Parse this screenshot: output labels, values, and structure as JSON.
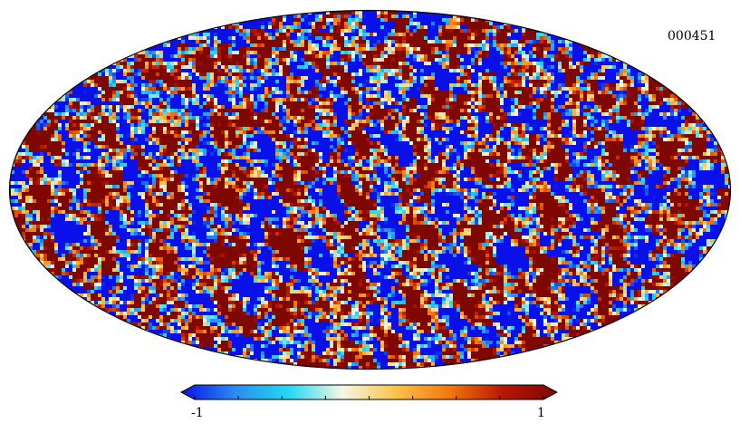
{
  "map": {
    "id_label": "000451",
    "projection": "mollweide",
    "pattern_seed": 451
  },
  "colorbar": {
    "min_label": "-1",
    "max_label": "1",
    "colors": [
      "#0a10e8",
      "#2a8cf0",
      "#22d8f2",
      "#f4f8e4",
      "#fbc24a",
      "#f2780c",
      "#b81602",
      "#7e0700"
    ],
    "extends": "both",
    "tick_count": 9
  }
}
